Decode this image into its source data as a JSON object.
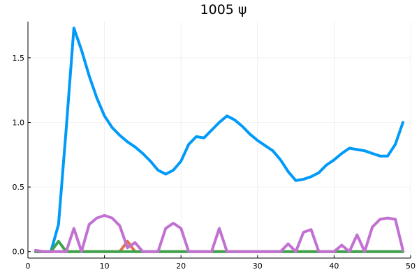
{
  "chart_data": {
    "type": "line",
    "title": "1005 ψ",
    "xlabel": "",
    "ylabel": "",
    "xlim": [
      0,
      50
    ],
    "ylim": [
      -0.05,
      1.78
    ],
    "xticks": [
      0,
      10,
      20,
      30,
      40,
      50
    ],
    "xtick_labels": [
      "0",
      "10",
      "20",
      "30",
      "40",
      "50"
    ],
    "yticks": [
      0.0,
      0.5,
      1.0,
      1.5
    ],
    "ytick_labels": [
      "0.0",
      "0.5",
      "1.0",
      "1.5"
    ],
    "grid": true,
    "legend": "none",
    "x": [
      1,
      2,
      3,
      4,
      5,
      6,
      7,
      8,
      9,
      10,
      11,
      12,
      13,
      14,
      15,
      16,
      17,
      18,
      19,
      20,
      21,
      22,
      23,
      24,
      25,
      26,
      27,
      28,
      29,
      30,
      31,
      32,
      33,
      34,
      35,
      36,
      37,
      38,
      39,
      40,
      41,
      42,
      43,
      44,
      45,
      46,
      47,
      48,
      49
    ],
    "series": [
      {
        "color": "#009af9",
        "values": [
          0,
          0,
          0,
          0.21,
          0.95,
          1.73,
          1.56,
          1.36,
          1.19,
          1.05,
          0.96,
          0.9,
          0.85,
          0.81,
          0.76,
          0.7,
          0.63,
          0.6,
          0.63,
          0.7,
          0.83,
          0.89,
          0.88,
          0.94,
          1.0,
          1.05,
          1.02,
          0.97,
          0.91,
          0.86,
          0.82,
          0.78,
          0.71,
          0.62,
          0.55,
          0.56,
          0.58,
          0.61,
          0.67,
          0.71,
          0.76,
          0.8,
          0.79,
          0.78,
          0.76,
          0.74,
          0.74,
          0.83,
          1.0
        ]
      },
      {
        "color": "#e26f46",
        "values": [
          0,
          0,
          0,
          0,
          0,
          0,
          0,
          0,
          0,
          0,
          0,
          0,
          0.08,
          0,
          0,
          0,
          0,
          0,
          0,
          0,
          0,
          0,
          0,
          0,
          0,
          0,
          0,
          0,
          0,
          0,
          0,
          0,
          0,
          0,
          0,
          0,
          0,
          0,
          0,
          0,
          0,
          0,
          0,
          0,
          0,
          0,
          0,
          0,
          0
        ]
      },
      {
        "color": "#3da44d",
        "values": [
          0,
          0,
          0,
          0.08,
          0,
          0,
          0,
          0,
          0,
          0,
          0,
          0,
          0,
          0,
          0,
          0,
          0,
          0,
          0,
          0,
          0,
          0,
          0,
          0,
          0,
          0,
          0,
          0,
          0,
          0,
          0,
          0,
          0,
          0,
          0,
          0,
          0,
          0,
          0,
          0,
          0,
          0,
          0,
          0,
          0,
          0,
          0,
          0,
          0
        ]
      },
      {
        "color": "#c271d2",
        "values": [
          0.01,
          0,
          0,
          0,
          0,
          0.18,
          0,
          0.21,
          0.26,
          0.28,
          0.26,
          0.2,
          0.03,
          0.07,
          0,
          0,
          0,
          0.18,
          0.22,
          0.18,
          0,
          0,
          0,
          0,
          0.18,
          0,
          0,
          0,
          0,
          0,
          0,
          0,
          0,
          0.06,
          0,
          0.15,
          0.17,
          0,
          0,
          0,
          0.05,
          0,
          0.13,
          0,
          0.19,
          0.25,
          0.26,
          0.25,
          0.01
        ]
      }
    ]
  }
}
